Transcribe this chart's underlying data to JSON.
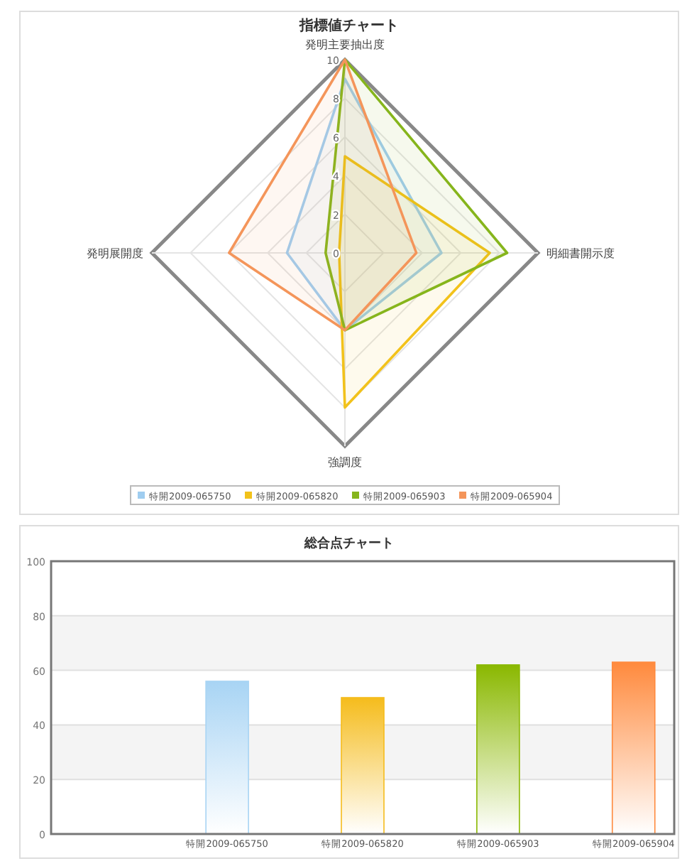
{
  "chart_data": [
    {
      "type": "radar",
      "title": "指標値チャート",
      "categories": [
        "発明主要抽出度",
        "明細書開示度",
        "強調度",
        "発明展開度"
      ],
      "series": [
        {
          "name": "特開2009-065750",
          "color": "#9fcdf0",
          "values": [
            9,
            5,
            4,
            3
          ]
        },
        {
          "name": "特開2009-065820",
          "color": "#f2c21b",
          "values": [
            5,
            7.5,
            8,
            0.3
          ]
        },
        {
          "name": "特開2009-065903",
          "color": "#86b51c",
          "values": [
            10,
            8.4,
            4,
            1
          ]
        },
        {
          "name": "特開2009-065904",
          "color": "#f4955a",
          "values": [
            10,
            3.7,
            4,
            6
          ]
        }
      ],
      "ylim": [
        0,
        10
      ],
      "yticks": [
        0,
        2,
        4,
        6,
        8,
        10
      ],
      "grid": true,
      "legend": "bottom"
    },
    {
      "type": "bar",
      "title": "総合点チャート",
      "categories": [
        "特開2009-065750",
        "特開2009-065820",
        "特開2009-065903",
        "特開2009-065904"
      ],
      "values": [
        56,
        50,
        62,
        63
      ],
      "colors": [
        "#a8d4f4",
        "#f5bc1c",
        "#8ab800",
        "#ff8a3d"
      ],
      "ylim": [
        0,
        100
      ],
      "yticks": [
        0,
        20,
        40,
        60,
        80,
        100
      ],
      "grid": "y"
    }
  ]
}
